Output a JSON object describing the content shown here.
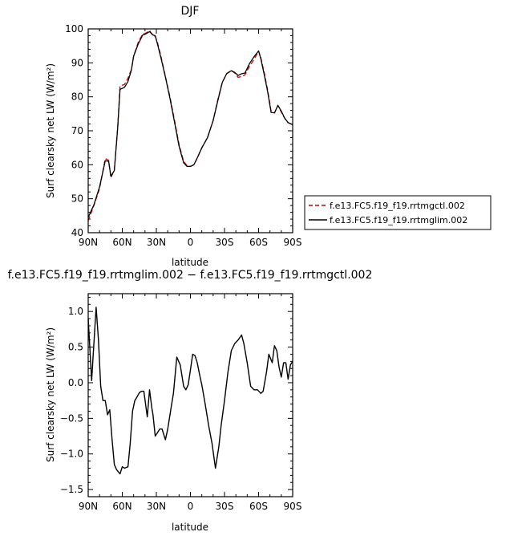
{
  "colors": {
    "ctl": "#cc0000",
    "lim": "#000000",
    "diff": "#000000"
  },
  "chart_data": [
    {
      "type": "line",
      "title": "DJF",
      "xlabel": "latitude",
      "ylabel": "Surf clearsky net LW (W/m²)",
      "ylim": [
        40,
        100
      ],
      "xlim": [
        -90,
        90
      ],
      "xticks": [
        -90,
        -60,
        -30,
        0,
        30,
        60,
        90
      ],
      "xtick_labels": [
        "90N",
        "60N",
        "30N",
        "0",
        "30S",
        "60S",
        "90S"
      ],
      "yticks": [
        40,
        50,
        60,
        70,
        80,
        90,
        100
      ],
      "ytick_labels": [
        "40",
        "50",
        "60",
        "70",
        "80",
        "90",
        "100"
      ],
      "legend_position": "outside-right",
      "x": [
        -90,
        -85,
        -80,
        -75,
        -72,
        -70,
        -67,
        -64,
        -62,
        -58,
        -55,
        -52,
        -50,
        -46,
        -42,
        -40,
        -36,
        -33,
        -31,
        -29,
        -26,
        -22,
        -18,
        -14,
        -10,
        -6,
        -3,
        0,
        3,
        6,
        10,
        15,
        20,
        24,
        28,
        32,
        36,
        39,
        42,
        45,
        48,
        52,
        56,
        60,
        62,
        65,
        68,
        71,
        74,
        77,
        80,
        83,
        86,
        90
      ],
      "series": [
        {
          "name": "f.e13.FC5.f19_f19.rrtmgctl.002",
          "values": [
            43.5,
            48,
            53,
            61.8,
            61.3,
            56.2,
            58.5,
            71,
            83.2,
            83.6,
            85.5,
            88,
            92,
            96,
            98.5,
            98.6,
            99.5,
            98,
            97.8,
            96,
            92,
            86,
            80,
            73,
            66,
            61,
            59.7,
            59.5,
            60,
            62,
            65,
            68,
            73,
            79,
            84.3,
            86.8,
            87.7,
            87,
            85.7,
            86,
            86.5,
            89,
            91,
            93.5,
            91.5,
            87,
            82,
            75.8,
            75.2,
            77.5,
            75.5,
            73.7,
            72.4,
            71.8
          ],
          "color": "#cc0000"
        },
        {
          "name": "f.e13.FC5.f19_f19.rrtmglim.002",
          "values": [
            44.5,
            48.2,
            53.5,
            61.2,
            61,
            56.6,
            58.3,
            71,
            82.2,
            82.8,
            84.5,
            87.8,
            92,
            95.5,
            98.2,
            98.4,
            99.2,
            98.2,
            98,
            95.5,
            91.5,
            85.8,
            79.5,
            72.5,
            65.5,
            60.6,
            59.5,
            59.5,
            60,
            62,
            65,
            68,
            73,
            78.7,
            84.2,
            86.9,
            87.7,
            87.2,
            86.3,
            86.8,
            87,
            89.8,
            91.8,
            93.5,
            91.2,
            86.5,
            81.5,
            75.4,
            75.3,
            77.5,
            75.8,
            73.7,
            72.4,
            71.8
          ],
          "color": "#000000"
        }
      ]
    },
    {
      "type": "line",
      "title": "f.e13.FC5.f19_f19.rrtmglim.002 − f.e13.FC5.f19_f19.rrtmgctl.002",
      "xlabel": "latitude",
      "ylabel": "Surf clearsky net LW (W/m²)",
      "ylim": [
        -1.6,
        1.25
      ],
      "xlim": [
        -90,
        90
      ],
      "xticks": [
        -90,
        -60,
        -30,
        0,
        30,
        60,
        90
      ],
      "xtick_labels": [
        "90N",
        "60N",
        "30N",
        "0",
        "30S",
        "60S",
        "90S"
      ],
      "yticks": [
        -1.5,
        -1.0,
        -0.5,
        0.0,
        0.5,
        1.0
      ],
      "ytick_labels": [
        "−1.5",
        "−1.0",
        "−0.5",
        "0.0",
        "0.5",
        "1.0"
      ],
      "x": [
        -90,
        -87,
        -85,
        -83,
        -81,
        -79,
        -77,
        -75,
        -73,
        -71,
        -69,
        -67,
        -65,
        -62,
        -60,
        -58,
        -55,
        -53,
        -51,
        -49,
        -47,
        -45,
        -43,
        -41,
        -38,
        -36,
        -34,
        -33,
        -31,
        -29,
        -27,
        -25,
        -22,
        -20,
        -17,
        -15,
        -12,
        -9,
        -6,
        -4,
        -2,
        0,
        2,
        4,
        6,
        8,
        10,
        13,
        16,
        19,
        22,
        25,
        27,
        30,
        33,
        36,
        39,
        42,
        45,
        47,
        50,
        53,
        56,
        59,
        62,
        64,
        67,
        69,
        72,
        74,
        76,
        78,
        80,
        82,
        84,
        86,
        88,
        90
      ],
      "series": [
        {
          "name": "",
          "values": [
            0.9,
            0.03,
            0.55,
            1.06,
            0.6,
            -0.05,
            -0.25,
            -0.25,
            -0.45,
            -0.38,
            -0.8,
            -1.15,
            -1.22,
            -1.28,
            -1.18,
            -1.2,
            -1.18,
            -0.85,
            -0.4,
            -0.25,
            -0.2,
            -0.14,
            -0.12,
            -0.12,
            -0.48,
            -0.1,
            -0.35,
            -0.45,
            -0.75,
            -0.7,
            -0.65,
            -0.65,
            -0.8,
            -0.65,
            -0.35,
            -0.15,
            0.36,
            0.25,
            -0.05,
            -0.1,
            -0.03,
            0.18,
            0.4,
            0.38,
            0.28,
            0.12,
            -0.03,
            -0.3,
            -0.6,
            -0.85,
            -1.2,
            -0.9,
            -0.6,
            -0.25,
            0.15,
            0.45,
            0.55,
            0.6,
            0.67,
            0.55,
            0.28,
            -0.05,
            -0.1,
            -0.1,
            -0.15,
            -0.12,
            0.15,
            0.4,
            0.28,
            0.52,
            0.45,
            0.22,
            0.08,
            0.28,
            0.28,
            0.05,
            0.25,
            0.3
          ],
          "color": "#000000"
        }
      ]
    }
  ]
}
